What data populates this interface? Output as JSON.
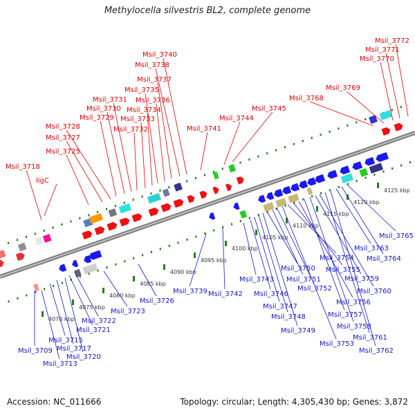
{
  "title": "Methylocella silvestris BL2, complete genome",
  "footer": {
    "accession": "Accession: NC_011666",
    "summary": "Topology: circular; Length: 4,305,430 bp; Genes: 3,872"
  },
  "colors": {
    "forward_label": "#e00000",
    "reverse_label": "#1515cc",
    "backbone": "#808080",
    "tick": "#208020"
  },
  "ticks": [
    "4070 kbp",
    "4075 kbp",
    "4080 kbp",
    "4085 kbp",
    "4090 kbp",
    "4095 kbp",
    "4100 kbp",
    "4105 kbp",
    "4110 kbp",
    "4115 kbp",
    "4120 kbp",
    "4125 kbp"
  ],
  "top_labels": [
    "Msil_3718",
    "ligC",
    "Msil_3725",
    "Msil_3727",
    "Msil_3728",
    "Msil_3729",
    "Msil_3730",
    "Msil_3731",
    "Msil_3732",
    "Msil_3733",
    "Msil_3734",
    "Msil_3735",
    "Msil_3736",
    "Msil_3737",
    "Msil_3738",
    "Msil_3740",
    "Msil_3741",
    "Msil_3744",
    "Msil_3745",
    "Msil_3768",
    "Msil_3769",
    "Msil_3770",
    "Msil_3771",
    "Msil_3772"
  ],
  "bottom_labels": [
    "Msil_3709",
    "Msil_3713",
    "Msil_3715",
    "Msil_3717",
    "Msil_3720",
    "Msil_3721",
    "Msil_3722",
    "Msil_3723",
    "Msil_3726",
    "Msil_3739",
    "Msil_3742",
    "Msil_3743",
    "Msil_3746",
    "Msil_3747",
    "Msil_3748",
    "Msil_3749",
    "Msil_3750",
    "Msil_3751",
    "Msil_3752",
    "Msil_3753",
    "Msil_3754",
    "Msil_3755",
    "Msil_3756",
    "Msil_3757",
    "Msil_3758",
    "Msil_3759",
    "Msil_3760",
    "Msil_3761",
    "Msil_3762",
    "Msil_3763",
    "Msil_3764",
    "Msil_3765"
  ]
}
